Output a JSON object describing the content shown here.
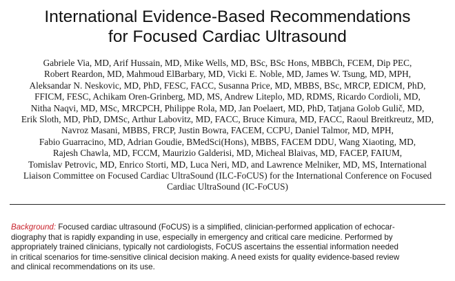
{
  "paper": {
    "title_lines": [
      "International Evidence-Based Recommendations",
      "for Focused Cardiac Ultrasound"
    ],
    "author_lines": [
      "Gabriele Via, MD, Arif Hussain, MD, Mike Wells, MD, BSc, BSc Hons, MBBCh, FCEM, Dip PEC,",
      "Robert Reardon, MD, Mahmoud ElBarbary, MD, Vicki E. Noble, MD, James W. Tsung, MD, MPH,",
      "Aleksandar N. Neskovic, MD, PhD, FESC, FACC, Susanna Price, MD, MBBS, BSc, MRCP, EDICM, PhD,",
      "FFICM, FESC, Achikam Oren-Grinberg, MD, MS, Andrew Liteplo, MD, RDMS, Ricardo Cordioli, MD,",
      "Nitha Naqvi, MD, MSc, MRCPCH, Philippe Rola, MD, Jan Poelaert, MD, PhD, Tatjana Golob Gulič, MD,",
      "Erik Sloth, MD, PhD, DMSc, Arthur Labovitz, MD, FACC, Bruce Kimura, MD, FACC, Raoul Breitkreutz, MD,",
      "Navroz Masani, MBBS, FRCP, Justin Bowra, FACEM, CCPU, Daniel Talmor, MD, MPH,",
      "Fabio Guarracino, MD, Adrian Goudie, BMedSci(Hons), MBBS, FACEM DDU, Wang Xiaoting, MD,",
      "Rajesh Chawla, MD, FCCM, Maurizio Galderisi, MD, Micheal Blaivas, MD, FACEP, FAIUM,",
      "Tomislav Petrovic, MD, Enrico Storti, MD, Luca Neri, MD, and Lawrence Melniker, MD, MS, International",
      "Liaison Committee on Focused Cardiac UltraSound (ILC-FoCUS) for the International Conference on Focused",
      "Cardiac UltraSound (IC-FoCUS)"
    ],
    "abstract": {
      "label": "Background:",
      "first_line_rest": " Focused cardiac ultrasound (FoCUS) is a simplified, clinician-performed application of echocar-",
      "lines": [
        "diography that is rapidly expanding in use, especially in emergency and critical care medicine. Performed by",
        "appropriately trained clinicians, typically not cardiologists, FoCUS ascertains the essential information needed",
        "in critical scenarios for time-sensitive clinical decision making. A need exists for quality evidence-based review",
        "and clinical recommendations on its use."
      ]
    }
  },
  "colors": {
    "text": "#111111",
    "label_accent": "#c8202a",
    "rule": "#222222"
  }
}
